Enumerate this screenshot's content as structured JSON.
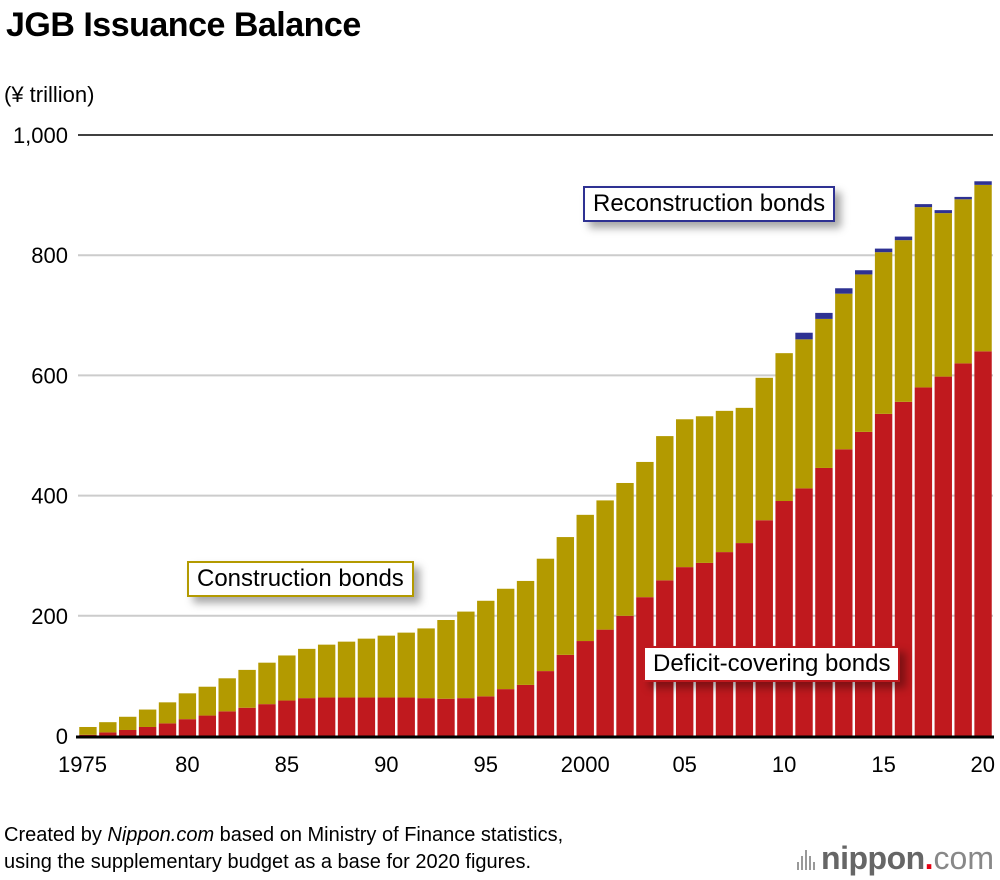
{
  "title": "JGB Issuance Balance",
  "unit_label": "(¥ trillion)",
  "callouts": {
    "construction": "Construction bonds",
    "reconstruction": "Reconstruction bonds",
    "deficit": "Deficit-covering bonds"
  },
  "footer": {
    "line1_prefix": "Created by ",
    "line1_brand": "Nippon.com",
    "line1_suffix": " based on Ministry of Finance statistics,",
    "line2": "using the supplementary budget as a base for 2020 figures."
  },
  "logo": {
    "brand": "nippon",
    "dot": ".",
    "tld": "com"
  },
  "colors": {
    "deficit": "#c0191e",
    "construction": "#b39a00",
    "reconstruction": "#2e3192",
    "grid": "#cccccc",
    "axis": "#000000"
  },
  "chart_data": {
    "type": "bar",
    "stacked": true,
    "title": "JGB Issuance Balance",
    "ylabel": "(¥ trillion)",
    "xlabel": "",
    "ylim": [
      0,
      1000
    ],
    "yticks": [
      0,
      200,
      400,
      600,
      800,
      1000
    ],
    "ytick_labels": [
      "0",
      "200",
      "400",
      "600",
      "800",
      "1,000"
    ],
    "grid": true,
    "categories": [
      1975,
      1976,
      1977,
      1978,
      1979,
      1980,
      1981,
      1982,
      1983,
      1984,
      1985,
      1986,
      1987,
      1988,
      1989,
      1990,
      1991,
      1992,
      1993,
      1994,
      1995,
      1996,
      1997,
      1998,
      1999,
      2000,
      2001,
      2002,
      2003,
      2004,
      2005,
      2006,
      2007,
      2008,
      2009,
      2010,
      2011,
      2012,
      2013,
      2014,
      2015,
      2016,
      2017,
      2018,
      2019,
      2020
    ],
    "xtick_labels": [
      {
        "year": 1975,
        "label": "1975"
      },
      {
        "year": 1980,
        "label": "80"
      },
      {
        "year": 1985,
        "label": "85"
      },
      {
        "year": 1990,
        "label": "90"
      },
      {
        "year": 1995,
        "label": "95"
      },
      {
        "year": 2000,
        "label": "2000"
      },
      {
        "year": 2005,
        "label": "05"
      },
      {
        "year": 2010,
        "label": "10"
      },
      {
        "year": 2015,
        "label": "15"
      },
      {
        "year": 2020,
        "label": "20"
      }
    ],
    "series": [
      {
        "name": "Deficit-covering bonds",
        "color": "#c0191e",
        "values": [
          2,
          6,
          10,
          15,
          21,
          28,
          34,
          41,
          47,
          53,
          59,
          63,
          64,
          64,
          64,
          64,
          64,
          63,
          62,
          63,
          66,
          78,
          85,
          108,
          135,
          158,
          177,
          200,
          231,
          259,
          281,
          288,
          306,
          321,
          359,
          391,
          412,
          446,
          477,
          506,
          536,
          556,
          580,
          598,
          620,
          640
        ]
      },
      {
        "name": "Construction bonds",
        "color": "#b39a00",
        "values": [
          13,
          17,
          22,
          29,
          35,
          43,
          48,
          55,
          63,
          69,
          75,
          82,
          88,
          93,
          98,
          103,
          108,
          116,
          131,
          144,
          159,
          167,
          173,
          187,
          196,
          210,
          215,
          221,
          225,
          240,
          246,
          244,
          235,
          225,
          237,
          246,
          248,
          248,
          259,
          262,
          269,
          269,
          300,
          272,
          273,
          277
        ]
      },
      {
        "name": "Reconstruction bonds",
        "color": "#2e3192",
        "values": [
          0,
          0,
          0,
          0,
          0,
          0,
          0,
          0,
          0,
          0,
          0,
          0,
          0,
          0,
          0,
          0,
          0,
          0,
          0,
          0,
          0,
          0,
          0,
          0,
          0,
          0,
          0,
          0,
          0,
          0,
          0,
          0,
          0,
          0,
          0,
          0,
          11,
          10,
          9,
          7,
          6,
          6,
          5,
          5,
          4,
          6
        ]
      }
    ],
    "legend": "inline callouts"
  }
}
